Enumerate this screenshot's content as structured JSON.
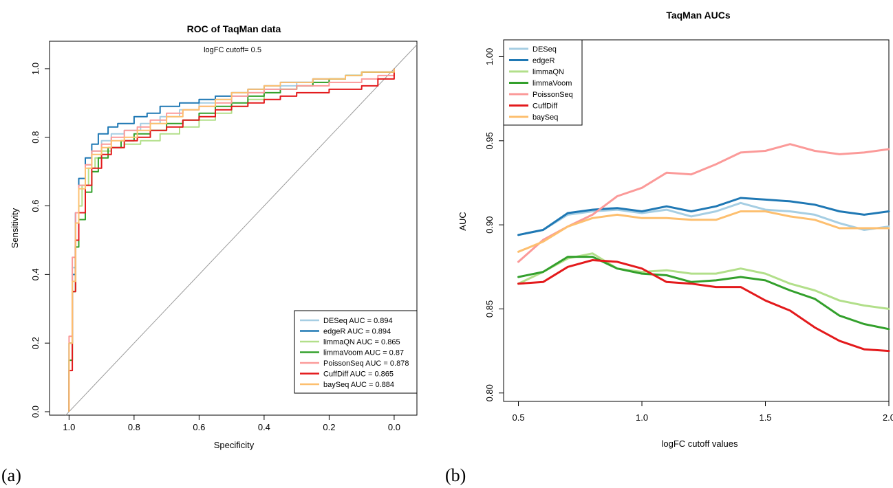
{
  "colors": {
    "DESeq": "#A6CEE3",
    "edgeR": "#1F78B4",
    "limmaQN": "#B2DF8A",
    "limmaVoom": "#33A02C",
    "PoissonSeq": "#FB9A99",
    "CuffDiff": "#E31A1C",
    "baySeq": "#FDBF6F"
  },
  "panel_labels": {
    "a": "(a)",
    "b": "(b)"
  },
  "chart_data": [
    {
      "type": "line",
      "title": "ROC of TaqMan data",
      "annotation": "logFC cutoff= 0.5",
      "xlabel": "Specificity",
      "ylabel": "Sensitivity",
      "xlim": [
        1.06,
        -0.07
      ],
      "ylim": [
        -0.01,
        1.08
      ],
      "x_reversed": true,
      "xticks": [
        1.0,
        0.8,
        0.6,
        0.4,
        0.2,
        0.0
      ],
      "xtick_labels": [
        "1.0",
        "0.8",
        "0.6",
        "0.4",
        "0.2",
        "0.0"
      ],
      "yticks": [
        0.0,
        0.2,
        0.4,
        0.6,
        0.8,
        1.0
      ],
      "ytick_labels": [
        "0.0",
        "0.2",
        "0.4",
        "0.6",
        "0.8",
        "1.0"
      ],
      "reference_line": "diagonal",
      "legend_position": "bottom-right",
      "series": [
        {
          "name": "DESeq",
          "legend": "DESeq AUC = 0.894",
          "auc": 0.894,
          "x": [
            1.0,
            1.0,
            0.99,
            0.98,
            0.97,
            0.95,
            0.93,
            0.9,
            0.87,
            0.83,
            0.78,
            0.72,
            0.66,
            0.6,
            0.55,
            0.5,
            0.45,
            0.4,
            0.35,
            0.3,
            0.25,
            0.2,
            0.15,
            0.1,
            0.05,
            0.0
          ],
          "y": [
            0.0,
            0.2,
            0.42,
            0.58,
            0.66,
            0.72,
            0.76,
            0.79,
            0.81,
            0.82,
            0.84,
            0.86,
            0.88,
            0.9,
            0.91,
            0.92,
            0.93,
            0.94,
            0.95,
            0.96,
            0.97,
            0.97,
            0.98,
            0.99,
            0.99,
            1.0
          ]
        },
        {
          "name": "edgeR",
          "legend": "edgeR AUC = 0.894",
          "auc": 0.894,
          "x": [
            1.0,
            1.0,
            0.99,
            0.98,
            0.97,
            0.95,
            0.93,
            0.91,
            0.88,
            0.85,
            0.8,
            0.76,
            0.72,
            0.66,
            0.6,
            0.55,
            0.5,
            0.45,
            0.4,
            0.35,
            0.3,
            0.25,
            0.2,
            0.15,
            0.1,
            0.05,
            0.0
          ],
          "y": [
            0.0,
            0.2,
            0.4,
            0.58,
            0.68,
            0.74,
            0.78,
            0.81,
            0.83,
            0.84,
            0.86,
            0.87,
            0.89,
            0.9,
            0.91,
            0.92,
            0.93,
            0.94,
            0.95,
            0.96,
            0.96,
            0.97,
            0.97,
            0.98,
            0.99,
            0.99,
            1.0
          ]
        },
        {
          "name": "limmaQN",
          "legend": "limmaQN AUC = 0.865",
          "auc": 0.865,
          "x": [
            1.0,
            1.0,
            0.99,
            0.98,
            0.97,
            0.96,
            0.94,
            0.92,
            0.9,
            0.87,
            0.83,
            0.78,
            0.72,
            0.66,
            0.6,
            0.55,
            0.5,
            0.45,
            0.4,
            0.35,
            0.3,
            0.25,
            0.2,
            0.15,
            0.1,
            0.05,
            0.0
          ],
          "y": [
            0.0,
            0.15,
            0.35,
            0.5,
            0.6,
            0.66,
            0.71,
            0.74,
            0.76,
            0.77,
            0.78,
            0.79,
            0.81,
            0.83,
            0.85,
            0.87,
            0.89,
            0.91,
            0.93,
            0.94,
            0.95,
            0.96,
            0.97,
            0.98,
            0.99,
            0.99,
            1.0
          ]
        },
        {
          "name": "limmaVoom",
          "legend": "limmaVoom AUC = 0.87",
          "auc": 0.87,
          "x": [
            1.0,
            1.0,
            0.99,
            0.98,
            0.97,
            0.95,
            0.93,
            0.91,
            0.88,
            0.84,
            0.8,
            0.75,
            0.7,
            0.65,
            0.6,
            0.55,
            0.5,
            0.45,
            0.4,
            0.35,
            0.3,
            0.25,
            0.2,
            0.15,
            0.1,
            0.05,
            0.0
          ],
          "y": [
            0.0,
            0.15,
            0.35,
            0.48,
            0.56,
            0.64,
            0.7,
            0.74,
            0.77,
            0.79,
            0.81,
            0.82,
            0.84,
            0.85,
            0.87,
            0.89,
            0.9,
            0.92,
            0.93,
            0.94,
            0.95,
            0.96,
            0.97,
            0.98,
            0.99,
            0.99,
            1.0
          ]
        },
        {
          "name": "PoissonSeq",
          "legend": "PoissonSeq AUC = 0.878",
          "auc": 0.878,
          "x": [
            1.0,
            1.0,
            0.99,
            0.98,
            0.97,
            0.95,
            0.93,
            0.9,
            0.87,
            0.83,
            0.79,
            0.75,
            0.7,
            0.65,
            0.6,
            0.55,
            0.5,
            0.45,
            0.4,
            0.35,
            0.3,
            0.25,
            0.2,
            0.15,
            0.1,
            0.05,
            0.0
          ],
          "y": [
            0.0,
            0.22,
            0.45,
            0.58,
            0.66,
            0.72,
            0.76,
            0.78,
            0.8,
            0.82,
            0.83,
            0.85,
            0.87,
            0.88,
            0.89,
            0.9,
            0.92,
            0.93,
            0.94,
            0.94,
            0.95,
            0.95,
            0.96,
            0.96,
            0.97,
            0.98,
            1.0
          ]
        },
        {
          "name": "CuffDiff",
          "legend": "CuffDiff AUC = 0.865",
          "auc": 0.865,
          "x": [
            1.0,
            1.0,
            0.99,
            0.98,
            0.97,
            0.95,
            0.93,
            0.9,
            0.87,
            0.83,
            0.79,
            0.75,
            0.7,
            0.65,
            0.6,
            0.55,
            0.5,
            0.45,
            0.4,
            0.35,
            0.3,
            0.25,
            0.2,
            0.15,
            0.1,
            0.05,
            0.0
          ],
          "y": [
            0.0,
            0.12,
            0.35,
            0.5,
            0.58,
            0.66,
            0.71,
            0.75,
            0.77,
            0.79,
            0.8,
            0.82,
            0.83,
            0.85,
            0.86,
            0.88,
            0.89,
            0.9,
            0.91,
            0.92,
            0.93,
            0.93,
            0.94,
            0.94,
            0.95,
            0.97,
            1.0
          ]
        },
        {
          "name": "baySeq",
          "legend": "baySeq AUC = 0.884",
          "auc": 0.884,
          "x": [
            1.0,
            1.0,
            0.99,
            0.98,
            0.97,
            0.95,
            0.93,
            0.9,
            0.87,
            0.83,
            0.79,
            0.75,
            0.7,
            0.65,
            0.6,
            0.55,
            0.5,
            0.45,
            0.4,
            0.35,
            0.3,
            0.25,
            0.2,
            0.15,
            0.1,
            0.05,
            0.0
          ],
          "y": [
            0.0,
            0.2,
            0.38,
            0.55,
            0.65,
            0.71,
            0.75,
            0.77,
            0.79,
            0.8,
            0.82,
            0.84,
            0.86,
            0.88,
            0.89,
            0.91,
            0.93,
            0.94,
            0.95,
            0.96,
            0.96,
            0.97,
            0.97,
            0.98,
            0.99,
            0.99,
            1.0
          ]
        }
      ]
    },
    {
      "type": "line",
      "title": "TaqMan AUCs",
      "xlabel": "logFC cutoff values",
      "ylabel": "AUC",
      "xlim": [
        0.44,
        2.0
      ],
      "ylim": [
        0.795,
        1.01
      ],
      "xticks": [
        0.5,
        1.0,
        1.5,
        2.0
      ],
      "xtick_labels": [
        "0.5",
        "1.0",
        "1.5",
        "2.0"
      ],
      "yticks": [
        0.8,
        0.85,
        0.9,
        0.95,
        1.0
      ],
      "ytick_labels": [
        "0.80",
        "0.85",
        "0.90",
        "0.95",
        "1.00"
      ],
      "legend_position": "top-left",
      "x": [
        0.5,
        0.6,
        0.7,
        0.8,
        0.9,
        1.0,
        1.1,
        1.2,
        1.3,
        1.4,
        1.5,
        1.6,
        1.7,
        1.8,
        1.9,
        2.0
      ],
      "series": [
        {
          "name": "DESeq",
          "values": [
            0.894,
            0.897,
            0.906,
            0.908,
            0.909,
            0.907,
            0.909,
            0.905,
            0.908,
            0.913,
            0.909,
            0.908,
            0.906,
            0.901,
            0.897,
            0.899
          ]
        },
        {
          "name": "edgeR",
          "values": [
            0.894,
            0.897,
            0.907,
            0.909,
            0.91,
            0.908,
            0.911,
            0.908,
            0.911,
            0.916,
            0.915,
            0.914,
            0.912,
            0.908,
            0.906,
            0.908
          ]
        },
        {
          "name": "limmaQN",
          "values": [
            0.865,
            0.872,
            0.88,
            0.883,
            0.874,
            0.872,
            0.873,
            0.871,
            0.871,
            0.874,
            0.871,
            0.865,
            0.861,
            0.855,
            0.852,
            0.85
          ]
        },
        {
          "name": "limmaVoom",
          "values": [
            0.869,
            0.872,
            0.881,
            0.881,
            0.874,
            0.871,
            0.87,
            0.866,
            0.867,
            0.869,
            0.867,
            0.861,
            0.856,
            0.846,
            0.841,
            0.838
          ]
        },
        {
          "name": "PoissonSeq",
          "values": [
            0.878,
            0.891,
            0.899,
            0.906,
            0.917,
            0.922,
            0.931,
            0.93,
            0.936,
            0.943,
            0.944,
            0.948,
            0.944,
            0.942,
            0.943,
            0.945
          ]
        },
        {
          "name": "CuffDiff",
          "values": [
            0.865,
            0.866,
            0.875,
            0.879,
            0.878,
            0.874,
            0.866,
            0.865,
            0.863,
            0.863,
            0.855,
            0.849,
            0.839,
            0.831,
            0.826,
            0.825
          ]
        },
        {
          "name": "baySeq",
          "values": [
            0.884,
            0.89,
            0.899,
            0.904,
            0.906,
            0.904,
            0.904,
            0.903,
            0.903,
            0.908,
            0.908,
            0.905,
            0.903,
            0.898,
            0.898,
            0.898
          ]
        }
      ]
    }
  ]
}
